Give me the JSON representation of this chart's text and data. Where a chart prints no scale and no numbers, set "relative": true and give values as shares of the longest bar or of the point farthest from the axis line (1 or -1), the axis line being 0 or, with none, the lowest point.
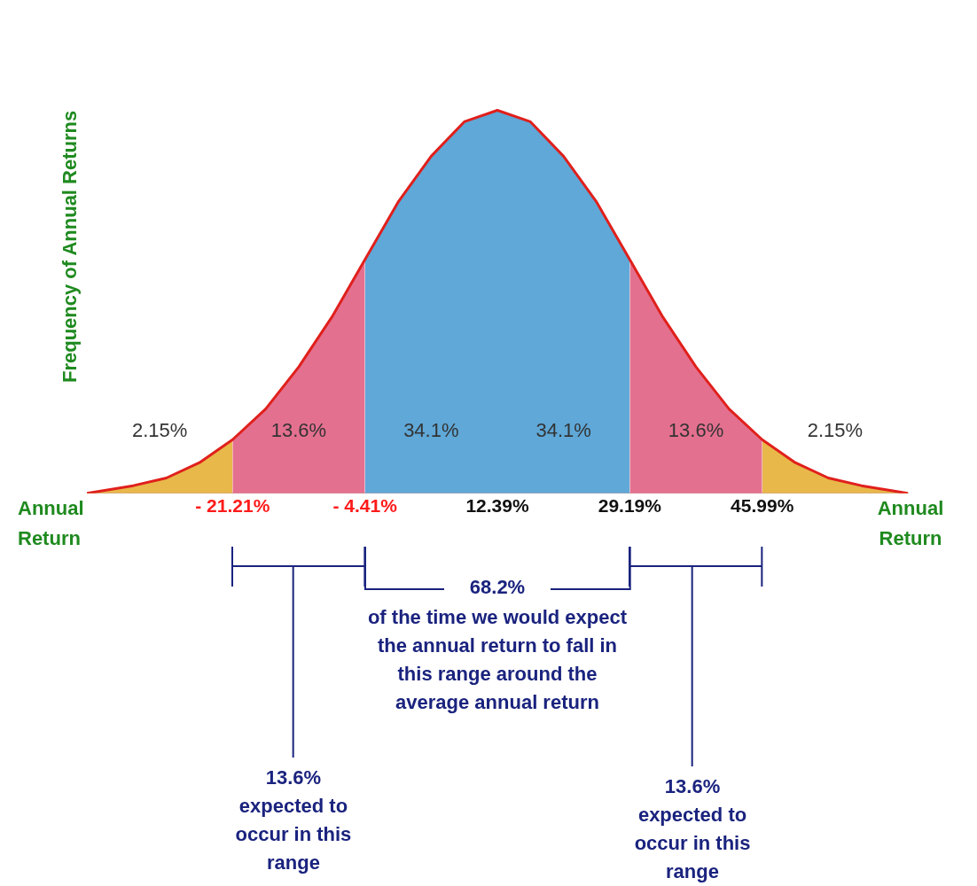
{
  "chart_data": {
    "type": "area",
    "relative": true,
    "xlabel": "Annual Return",
    "ylabel": "Frequency of Annual Returns",
    "xlim": [
      -39.69,
      64.47
    ],
    "xticks": [
      {
        "value": -21.21,
        "label": "- 21.21%"
      },
      {
        "value": -4.41,
        "label": "- 4.41%"
      },
      {
        "value": 12.39,
        "label": "12.39%"
      },
      {
        "value": 29.19,
        "label": "29.19%"
      },
      {
        "value": 45.99,
        "label": "45.99%"
      }
    ],
    "series": [
      {
        "type": "line",
        "color": "#e0201c",
        "x": [
          -39.69,
          -33.81,
          -29.61,
          -25.41,
          -21.21,
          -17.01,
          -12.81,
          -8.61,
          -4.41,
          -0.21,
          3.99,
          8.19,
          12.39,
          16.59,
          20.79,
          24.99,
          29.19,
          33.39,
          37.59,
          41.79,
          45.99,
          50.19,
          54.39,
          58.59,
          64.47
        ],
        "values": [
          0,
          0.02,
          0.04,
          0.08,
          0.14,
          0.22,
          0.33,
          0.46,
          0.61,
          0.76,
          0.88,
          0.97,
          1,
          0.97,
          0.88,
          0.76,
          0.61,
          0.46,
          0.33,
          0.22,
          0.14,
          0.08,
          0.04,
          0.02,
          0
        ]
      },
      {
        "color": "#e8b84a",
        "x": [
          -39.69,
          -33.81,
          -29.61,
          -25.41,
          -21.21
        ],
        "values": [
          0,
          0.02,
          0.04,
          0.08,
          0.14
        ]
      },
      {
        "color": "#e4708f",
        "x": [
          -21.21,
          -17.01,
          -12.81,
          -8.61,
          -4.41
        ],
        "values": [
          0.14,
          0.22,
          0.33,
          0.46,
          0.61
        ]
      },
      {
        "color": "#5fa8d8",
        "x": [
          -4.41,
          -0.21,
          3.99,
          8.19,
          12.39
        ],
        "values": [
          0.61,
          0.76,
          0.88,
          0.97,
          1
        ]
      },
      {
        "color": "#5fa8d8",
        "x": [
          12.39,
          16.59,
          20.79,
          24.99,
          29.19
        ],
        "values": [
          1,
          0.97,
          0.88,
          0.76,
          0.61
        ]
      },
      {
        "color": "#e4708f",
        "x": [
          29.19,
          33.39,
          37.59,
          41.79,
          45.99
        ],
        "values": [
          0.61,
          0.46,
          0.33,
          0.22,
          0.14
        ]
      },
      {
        "color": "#e8b84a",
        "x": [
          45.99,
          50.19,
          54.39,
          58.59,
          64.47
        ],
        "values": [
          0.14,
          0.08,
          0.04,
          0.02,
          0
        ]
      }
    ],
    "annotations": [
      "2.15%",
      "13.6%",
      "34.1%",
      "34.1%",
      "13.6%",
      "2.15%",
      "68.2%",
      "of the time we would expect the annual return to fall in this range around the average annual return",
      "13.6% expected to occur in this range",
      "13.6% expected to occur in this range"
    ],
    "grid": false,
    "legend": false
  }
}
